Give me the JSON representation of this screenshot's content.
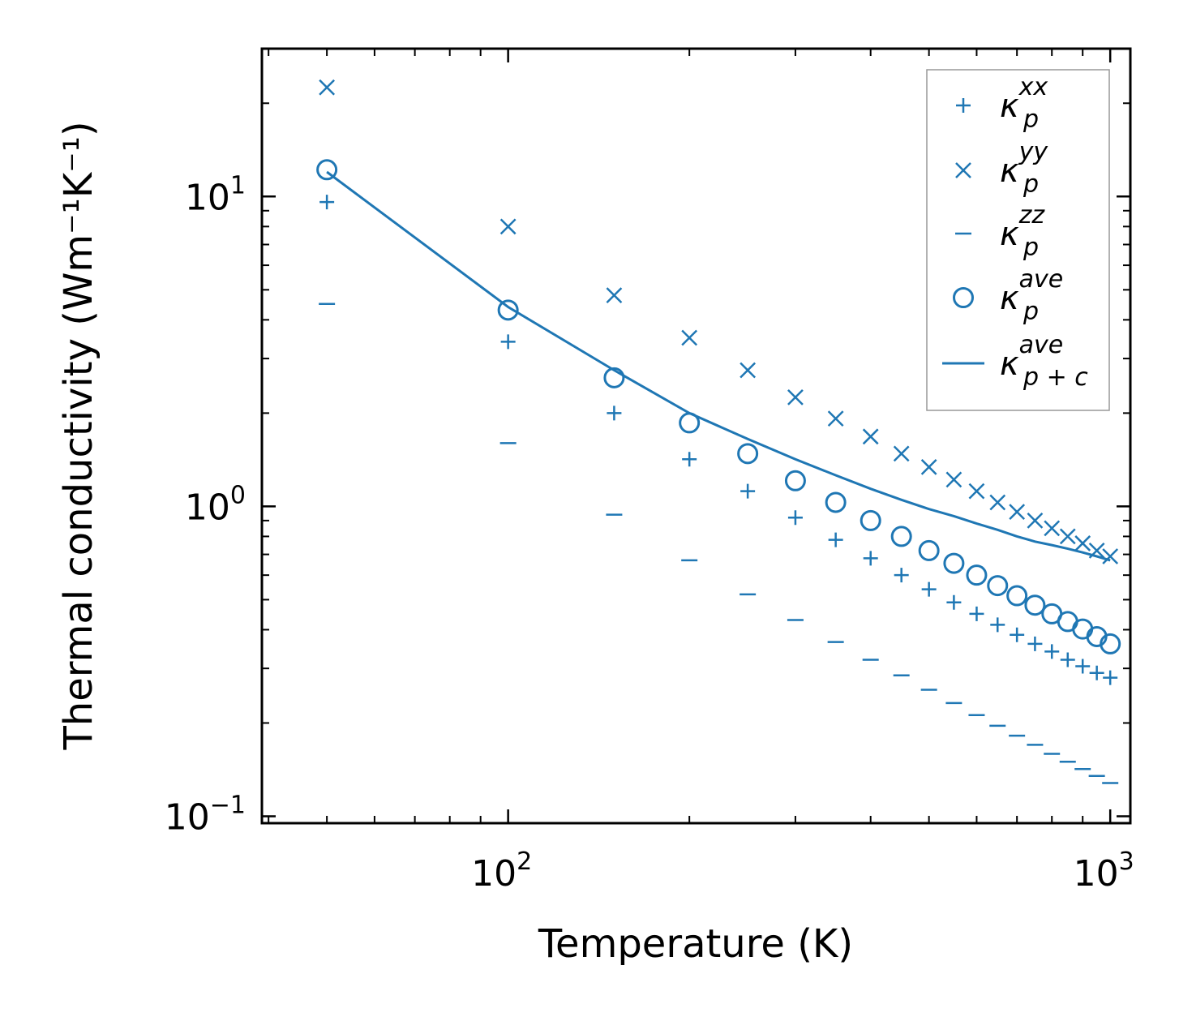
{
  "chart_data": {
    "type": "scatter",
    "xscale": "log",
    "yscale": "log",
    "xlabel": "Temperature (K)",
    "ylabel": "Thermal conductivity (Wm⁻¹K⁻¹)",
    "xlim": [
      39,
      1080
    ],
    "ylim": [
      0.095,
      30
    ],
    "xticks": [
      {
        "base": "10",
        "exp": "2",
        "value": 100
      },
      {
        "base": "10",
        "exp": "3",
        "value": 1000
      }
    ],
    "yticks": [
      {
        "base": "10",
        "exp": "−1",
        "value": 0.1
      },
      {
        "base": "10",
        "exp": "0",
        "value": 1
      },
      {
        "base": "10",
        "exp": "1",
        "value": 10
      }
    ],
    "x": [
      50,
      100,
      150,
      200,
      250,
      300,
      350,
      400,
      450,
      500,
      550,
      600,
      650,
      700,
      750,
      800,
      850,
      900,
      950,
      1000
    ],
    "series": [
      {
        "name": "kp_xx",
        "label_base": "κ",
        "label_sub": "p",
        "label_sup": "xx",
        "marker": "plus",
        "values": [
          9.6,
          3.4,
          2.0,
          1.42,
          1.12,
          0.92,
          0.78,
          0.68,
          0.6,
          0.54,
          0.49,
          0.45,
          0.415,
          0.385,
          0.36,
          0.34,
          0.32,
          0.305,
          0.29,
          0.28
        ]
      },
      {
        "name": "kp_yy",
        "label_base": "κ",
        "label_sub": "p",
        "label_sup": "yy",
        "marker": "x",
        "values": [
          22.5,
          8.0,
          4.8,
          3.5,
          2.75,
          2.25,
          1.92,
          1.68,
          1.48,
          1.34,
          1.22,
          1.12,
          1.03,
          0.96,
          0.9,
          0.85,
          0.8,
          0.76,
          0.72,
          0.69
        ]
      },
      {
        "name": "kp_zz",
        "label_base": "κ",
        "label_sub": "p",
        "label_sup": "zz",
        "marker": "hline",
        "values": [
          4.5,
          1.6,
          0.94,
          0.67,
          0.52,
          0.43,
          0.365,
          0.32,
          0.285,
          0.256,
          0.232,
          0.212,
          0.196,
          0.182,
          0.17,
          0.159,
          0.15,
          0.142,
          0.135,
          0.128
        ]
      },
      {
        "name": "kp_ave",
        "label_base": "κ",
        "label_sub": "p",
        "label_sup": "ave",
        "marker": "circle",
        "values": [
          12.2,
          4.3,
          2.6,
          1.86,
          1.48,
          1.21,
          1.03,
          0.9,
          0.8,
          0.72,
          0.655,
          0.6,
          0.555,
          0.515,
          0.48,
          0.45,
          0.425,
          0.402,
          0.38,
          0.36
        ]
      },
      {
        "name": "kpc_ave",
        "label_base": "κ",
        "label_sub": "p + c",
        "label_sup": "ave",
        "marker": "line",
        "values": [
          12.0,
          4.4,
          2.75,
          2.0,
          1.65,
          1.42,
          1.26,
          1.14,
          1.05,
          0.98,
          0.93,
          0.88,
          0.84,
          0.8,
          0.77,
          0.75,
          0.73,
          0.71,
          0.69,
          0.67
        ]
      }
    ],
    "legend_position": "top-right",
    "color": "#1f77b4"
  }
}
